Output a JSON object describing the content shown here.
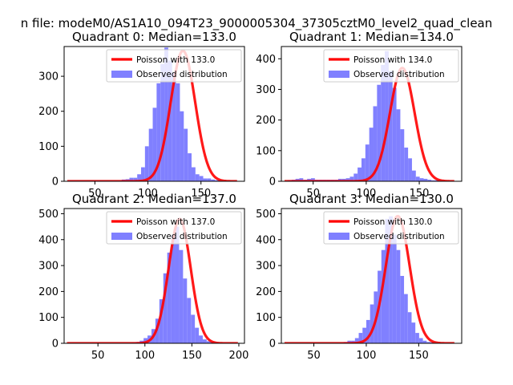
{
  "figure": {
    "suptitle": "n file: modeM0/AS1A10_094T23_9000005304_37305cztM0_level2_quad_clean"
  },
  "colors": {
    "poisson": "#ff0000",
    "observed": "#8080ff",
    "axes": "#000000"
  },
  "chart_data": [
    {
      "type": "bar",
      "title": "Quadrant 0: Median=133.0",
      "xlim": [
        21,
        191
      ],
      "ylim": [
        0,
        385
      ],
      "xticks": [
        50,
        100,
        150
      ],
      "yticks": [
        0,
        100,
        200,
        300
      ],
      "legend": {
        "position": "top-right",
        "line": "Poisson with 133.0",
        "bars": "Observed distribution"
      },
      "poisson": {
        "mean": 133.0,
        "scale": 373
      },
      "hist": {
        "start": 24,
        "width": 3.66,
        "values": [
          2,
          2,
          2,
          2,
          2,
          2,
          2,
          2,
          2,
          2,
          2,
          2,
          2,
          2,
          5,
          6,
          10,
          10,
          20,
          40,
          100,
          150,
          210,
          280,
          335,
          382,
          345,
          310,
          280,
          200,
          150,
          80,
          40,
          20,
          15,
          8,
          8,
          5,
          3,
          2
        ]
      }
    },
    {
      "type": "bar",
      "title": "Quadrant 1: Median=134.0",
      "xlim": [
        20,
        190
      ],
      "ylim": [
        0,
        440
      ],
      "xticks": [
        50,
        100,
        150
      ],
      "yticks": [
        0,
        100,
        200,
        300,
        400
      ],
      "legend": {
        "position": "top-right",
        "line": "Poisson with 134.0",
        "bars": "Observed distribution"
      },
      "poisson": {
        "mean": 134.0,
        "scale": 370
      },
      "hist": {
        "start": 26,
        "width": 3.66,
        "values": [
          4,
          5,
          8,
          10,
          5,
          8,
          10,
          5,
          5,
          5,
          5,
          5,
          5,
          8,
          8,
          10,
          15,
          25,
          45,
          75,
          120,
          175,
          245,
          315,
          380,
          425,
          360,
          305,
          235,
          170,
          110,
          75,
          35,
          15,
          10,
          8,
          5,
          3,
          3,
          2
        ]
      }
    },
    {
      "type": "bar",
      "title": "Quadrant 2: Median=137.0",
      "xlim": [
        14,
        206
      ],
      "ylim": [
        0,
        520
      ],
      "xticks": [
        50,
        100,
        150,
        200
      ],
      "yticks": [
        0,
        100,
        200,
        300,
        400,
        500
      ],
      "legend": {
        "position": "top-right",
        "line": "Poisson with 137.0",
        "bars": "Observed distribution"
      },
      "poisson": {
        "mean": 137.0,
        "scale": 480
      },
      "hist": {
        "start": 23,
        "width": 4.2,
        "values": [
          2,
          2,
          2,
          2,
          2,
          2,
          2,
          2,
          2,
          2,
          2,
          2,
          2,
          2,
          2,
          3,
          5,
          10,
          20,
          30,
          55,
          95,
          170,
          270,
          350,
          420,
          450,
          360,
          250,
          175,
          110,
          60,
          30,
          15,
          8,
          5,
          3,
          2,
          2
        ]
      }
    },
    {
      "type": "bar",
      "title": "Quadrant 3: Median=130.0",
      "xlim": [
        19,
        191
      ],
      "ylim": [
        0,
        520
      ],
      "xticks": [
        50,
        100,
        150
      ],
      "yticks": [
        0,
        100,
        200,
        300,
        400,
        500
      ],
      "legend": {
        "position": "top-right",
        "line": "Poisson with 130.0",
        "bars": "Observed distribution"
      },
      "poisson": {
        "mean": 130.0,
        "scale": 491
      },
      "hist": {
        "start": 28,
        "width": 3.6,
        "values": [
          2,
          2,
          2,
          2,
          2,
          2,
          2,
          2,
          2,
          2,
          2,
          2,
          2,
          2,
          5,
          10,
          10,
          20,
          40,
          60,
          90,
          150,
          200,
          280,
          360,
          480,
          490,
          420,
          360,
          260,
          190,
          120,
          80,
          40,
          20,
          10,
          5,
          3,
          2
        ]
      }
    }
  ]
}
